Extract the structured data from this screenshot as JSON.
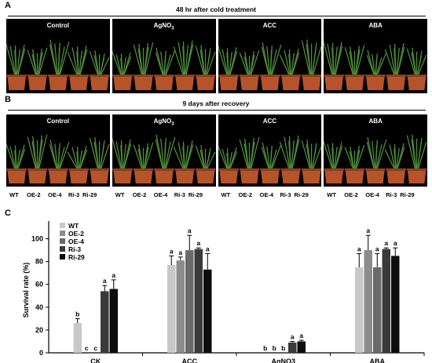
{
  "panels": {
    "a": {
      "letter": "A",
      "title": "48 hr after cold treatment"
    },
    "b": {
      "letter": "B",
      "title": "9 days after recovery"
    },
    "c": {
      "letter": "C"
    }
  },
  "treatments_photo": [
    {
      "name": "Control",
      "sub": ""
    },
    {
      "name": "AgNO",
      "sub": "3"
    },
    {
      "name": "ACC",
      "sub": ""
    },
    {
      "name": "ABA",
      "sub": ""
    }
  ],
  "genotype_labels": [
    "WT",
    "OE-2",
    "OE-4",
    "Ri-3",
    "Ri-29"
  ],
  "colors": {
    "photo_bg": "#000000",
    "pot": "#b5532a",
    "plant": "#4e8b3a",
    "bar_wt": "#c8c8c8",
    "bar_oe2": "#8c8c8c",
    "bar_oe4": "#6a6a6a",
    "bar_ri3": "#3a3a3a",
    "bar_ri29": "#0d0d0d"
  },
  "chart_data": {
    "type": "bar",
    "ylabel": "Survival rate (%)",
    "xlabel": "",
    "ylim": [
      0,
      110
    ],
    "yticks": [
      0,
      20,
      40,
      60,
      80,
      100
    ],
    "categories": [
      "CK",
      "ACC",
      "AgNO3",
      "ABA"
    ],
    "legend_position": "top-left",
    "series": [
      {
        "name": "WT",
        "color": "#c8c8c8",
        "values": [
          26,
          77,
          0,
          75
        ],
        "errors": [
          4,
          8,
          0,
          12
        ],
        "letters": [
          "b",
          "a",
          "b",
          "a"
        ]
      },
      {
        "name": "OE-2",
        "color": "#8c8c8c",
        "values": [
          0,
          81,
          0,
          90
        ],
        "errors": [
          0,
          3,
          0,
          13
        ],
        "letters": [
          "c",
          "a",
          "b",
          "a"
        ]
      },
      {
        "name": "OE-4",
        "color": "#6a6a6a",
        "values": [
          0,
          90,
          0,
          75
        ],
        "errors": [
          0,
          13,
          0,
          12
        ],
        "letters": [
          "c",
          "a",
          "b",
          "a"
        ]
      },
      {
        "name": "Ri-3",
        "color": "#3a3a3a",
        "values": [
          54,
          91,
          9,
          91
        ],
        "errors": [
          5,
          1,
          1,
          1
        ],
        "letters": [
          "a",
          "a",
          "a",
          "a"
        ]
      },
      {
        "name": "Ri-29",
        "color": "#0d0d0d",
        "values": [
          56,
          73,
          10,
          85
        ],
        "errors": [
          8,
          14,
          1,
          7
        ],
        "letters": [
          "a",
          "a",
          "a",
          "a"
        ]
      }
    ]
  }
}
